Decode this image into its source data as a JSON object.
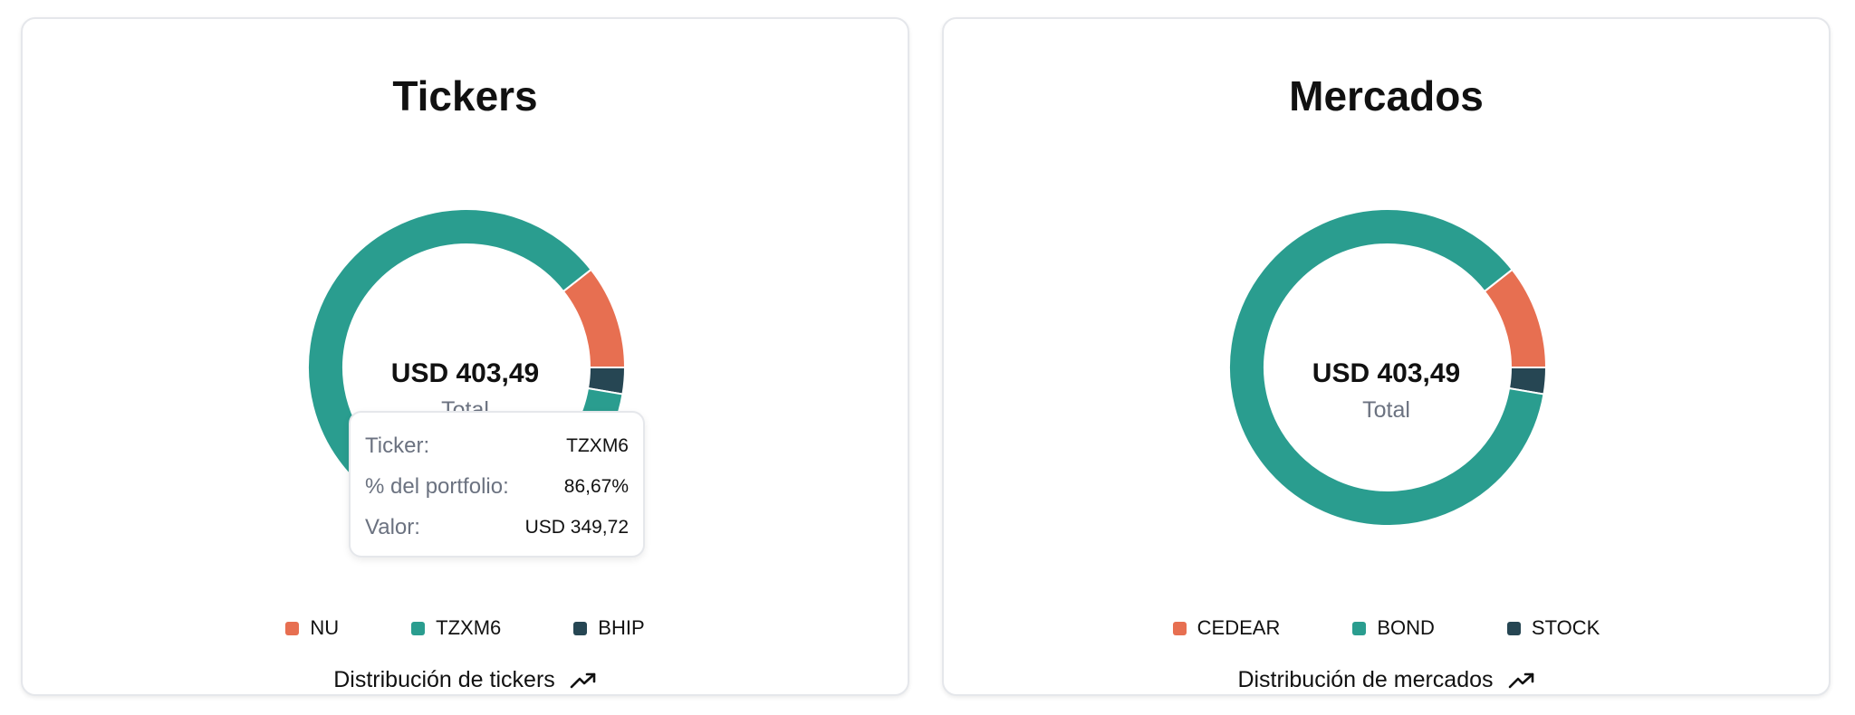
{
  "colors": {
    "orange": "#e76f51",
    "teal": "#2a9d8f",
    "navy": "#264653"
  },
  "cards": [
    {
      "title": "Tickers",
      "center_value": "USD 403,49",
      "center_label": "Total",
      "footer": "Distribución de tickers",
      "footer_icon": "trending-up-icon",
      "tooltip": {
        "rows": [
          {
            "label": "Ticker:",
            "value": "TZXM6"
          },
          {
            "label": "% del portfolio:",
            "value": "86,67%"
          },
          {
            "label": "Valor:",
            "value": "USD 349,72"
          }
        ]
      }
    },
    {
      "title": "Mercados",
      "center_value": "USD 403,49",
      "center_label": "Total",
      "footer": "Distribución de mercados",
      "footer_icon": "trending-up-icon"
    }
  ],
  "chart_data": [
    {
      "type": "pie",
      "variant": "donut",
      "title": "Tickers",
      "legend_placement": "bottom",
      "categories": [
        "NU",
        "TZXM6",
        "BHIP"
      ],
      "values": [
        10.6,
        86.67,
        2.7
      ],
      "colors": [
        "#e76f51",
        "#2a9d8f",
        "#264653"
      ],
      "total_label": "USD 403,49"
    },
    {
      "type": "pie",
      "variant": "donut",
      "title": "Mercados",
      "legend_placement": "bottom",
      "categories": [
        "CEDEAR",
        "BOND",
        "STOCK"
      ],
      "values": [
        10.6,
        86.67,
        2.7
      ],
      "colors": [
        "#e76f51",
        "#2a9d8f",
        "#264653"
      ],
      "total_label": "USD 403,49"
    }
  ]
}
